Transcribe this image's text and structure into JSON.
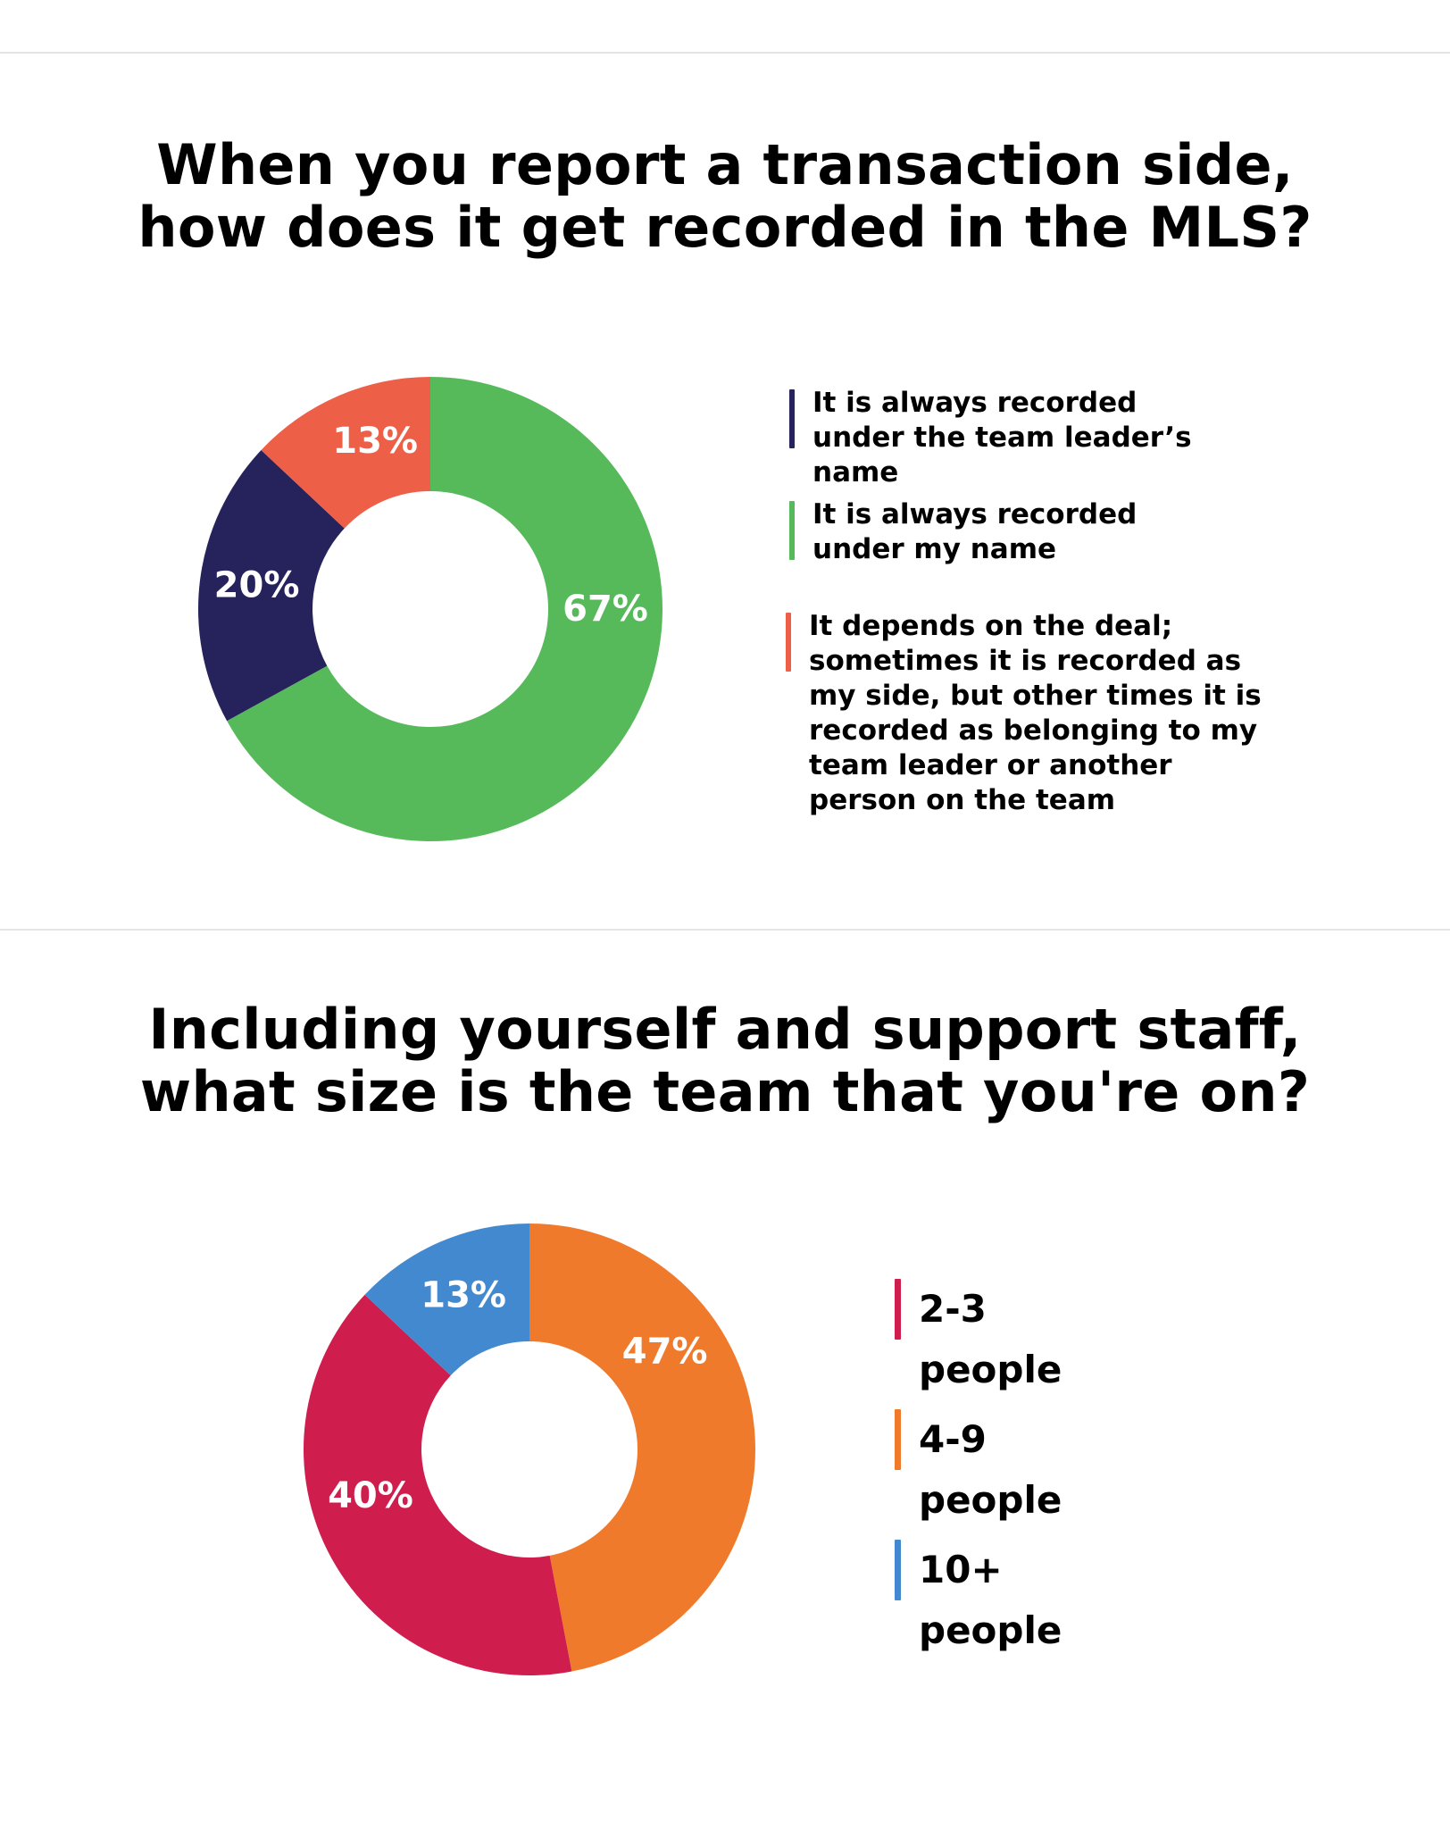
{
  "charts": [
    {
      "title_lines": [
        "When you report a transaction side,",
        "how does it get recorded in the MLS?"
      ]
    },
    {
      "title_lines": [
        "Including yourself and support staff,",
        "what size is the team that you're on?"
      ]
    }
  ],
  "chart_data": [
    {
      "type": "pie",
      "title": "When you report a transaction side, how does it get recorded in the MLS?",
      "donut": true,
      "legend_position": "right",
      "slices": [
        {
          "label": "It is always recorded under the team leader’s name",
          "value": 20,
          "display": "20%",
          "color": "#26235c"
        },
        {
          "label": "It is always recorded under my name",
          "value": 67,
          "display": "67%",
          "color": "#56ba5b"
        },
        {
          "label": "It depends on the deal; sometimes it is recorded as my side, but other times it is recorded as belonging to my team leader or another person on the team",
          "value": 13,
          "display": "13%",
          "color": "#ee5f48"
        }
      ]
    },
    {
      "type": "pie",
      "title": "Including yourself and support staff, what size is the team that you're on?",
      "donut": true,
      "legend_position": "right",
      "slices": [
        {
          "label": "2-3 people",
          "value": 40,
          "display": "40%",
          "color": "#cf1d4d"
        },
        {
          "label": "4-9 people",
          "value": 47,
          "display": "47%",
          "color": "#f07a2b"
        },
        {
          "label": "10+ people",
          "value": 13,
          "display": "13%",
          "color": "#4389cf"
        }
      ]
    }
  ]
}
